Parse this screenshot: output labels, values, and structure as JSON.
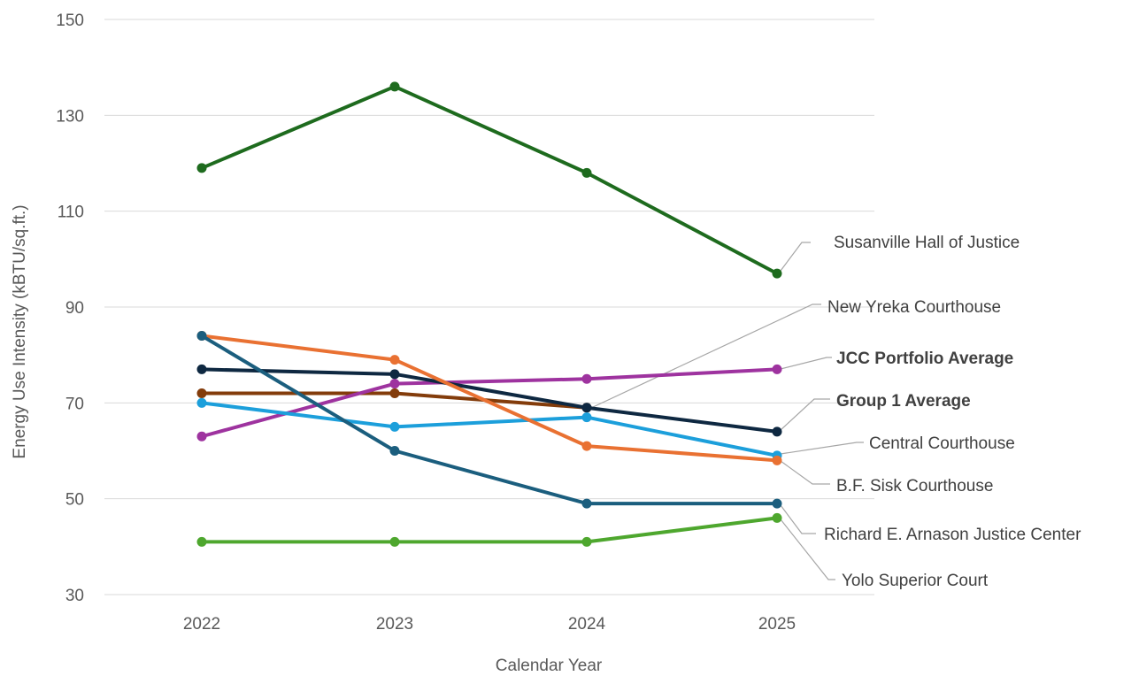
{
  "chart_data": {
    "type": "line",
    "xlabel": "Calendar Year",
    "ylabel": "Energy Use Intensity (kBTU/sq.ft.)",
    "categories": [
      "2022",
      "2023",
      "2024",
      "2025"
    ],
    "ylim": [
      30,
      150
    ],
    "yticks": [
      "30",
      "50",
      "70",
      "90",
      "110",
      "130",
      "150"
    ],
    "grid": true,
    "series": [
      {
        "name": "Susanville Hall of Justice",
        "color": "#1e6b1e",
        "values": [
          119,
          136,
          118,
          97
        ],
        "bold": false
      },
      {
        "name": "New Yreka Courthouse",
        "color": "#833c0b",
        "values": [
          72,
          72,
          69,
          null
        ],
        "bold": false
      },
      {
        "name": "JCC Portfolio Average",
        "color": "#9e339f",
        "values": [
          63,
          74,
          75,
          77
        ],
        "bold": true
      },
      {
        "name": "Group 1 Average",
        "color": "#0e2841",
        "values": [
          77,
          76,
          69,
          64
        ],
        "bold": true
      },
      {
        "name": "Central Courthouse",
        "color": "#1c9fdb",
        "values": [
          70,
          65,
          67,
          59
        ],
        "bold": false
      },
      {
        "name": "B.F. Sisk Courthouse",
        "color": "#e97132",
        "values": [
          84,
          79,
          61,
          58
        ],
        "bold": false
      },
      {
        "name": "Richard E. Arnason Justice Center",
        "color": "#1b5e7e",
        "values": [
          84,
          60,
          49,
          49
        ],
        "bold": false
      },
      {
        "name": "Yolo Superior Court",
        "color": "#4ea72e",
        "values": [
          41,
          41,
          41,
          46
        ],
        "bold": false
      }
    ]
  }
}
